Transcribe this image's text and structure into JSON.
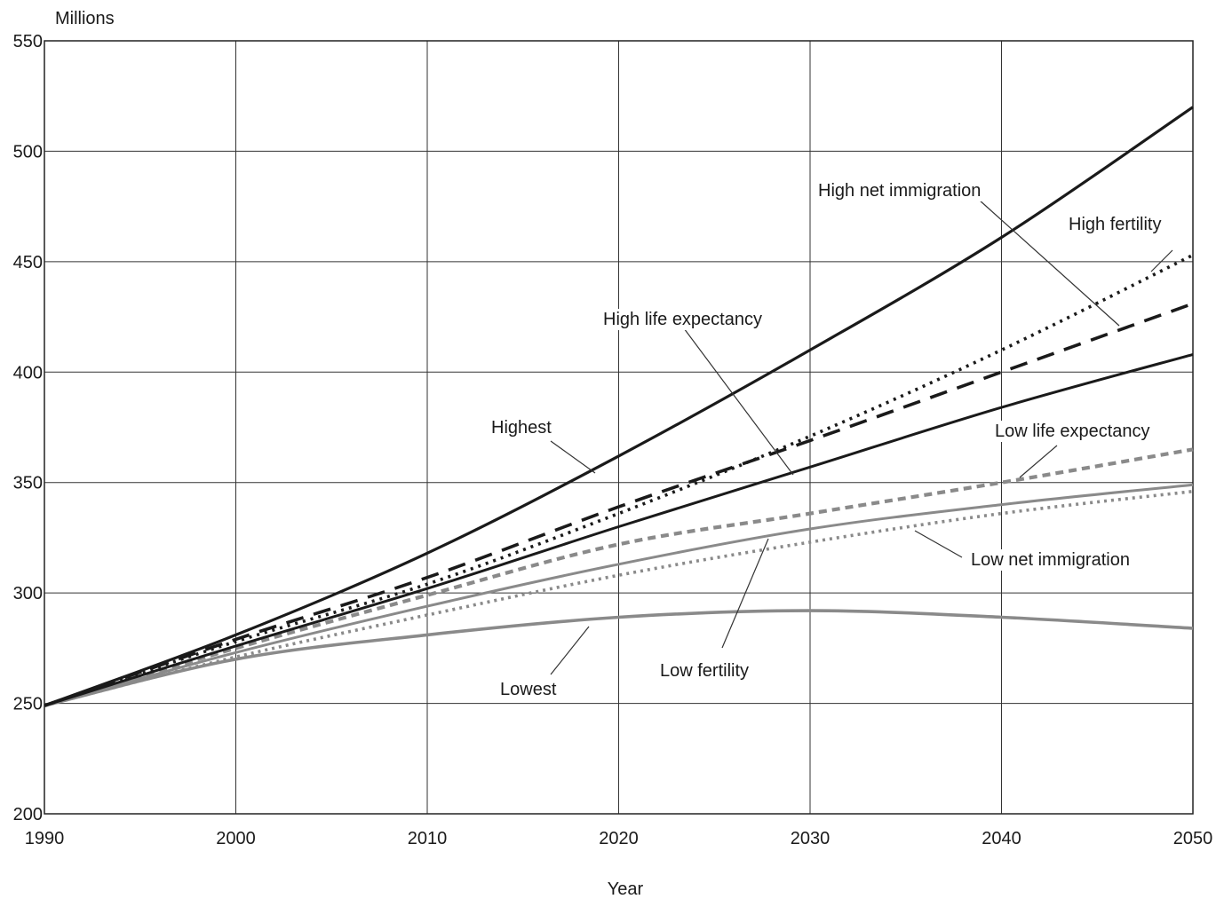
{
  "chart_data": {
    "type": "line",
    "ylabel": "Millions",
    "xlabel": "Year",
    "xlim": [
      1990,
      2050
    ],
    "ylim": [
      200,
      550
    ],
    "x_ticks": [
      1990,
      2000,
      2010,
      2020,
      2030,
      2040,
      2050
    ],
    "y_ticks": [
      200,
      250,
      300,
      350,
      400,
      450,
      500,
      550
    ],
    "grid": true,
    "legend": "none (series labeled directly on plot)",
    "x": [
      1990,
      2000,
      2010,
      2020,
      2030,
      2040,
      2050
    ],
    "series": [
      {
        "name": "Highest",
        "values": [
          249,
          281,
          318,
          362,
          410,
          461,
          520
        ],
        "color": "#1a1a1a",
        "style": "solid-heavy"
      },
      {
        "name": "High fertility",
        "values": [
          249,
          278,
          304,
          336,
          371,
          410,
          453
        ],
        "color": "#1a1a1a",
        "style": "dotted"
      },
      {
        "name": "High net immigration",
        "values": [
          249,
          279,
          307,
          339,
          369,
          400,
          431
        ],
        "color": "#1a1a1a",
        "style": "long-dash"
      },
      {
        "name": "High life expectancy",
        "values": [
          249,
          276,
          302,
          330,
          357,
          384,
          408
        ],
        "color": "#1a1a1a",
        "style": "solid"
      },
      {
        "name": "Low life expectancy",
        "values": [
          249,
          275,
          299,
          322,
          336,
          350,
          365
        ],
        "color": "#8a8a8a",
        "style": "dashed-gray"
      },
      {
        "name": "Low fertility",
        "values": [
          249,
          273,
          294,
          313,
          329,
          340,
          349
        ],
        "color": "#8a8a8a",
        "style": "solid-gray"
      },
      {
        "name": "Low net immigration",
        "values": [
          249,
          271,
          290,
          308,
          323,
          336,
          346
        ],
        "color": "#8a8a8a",
        "style": "dotted-gray"
      },
      {
        "name": "Lowest",
        "values": [
          249,
          270,
          281,
          289,
          292,
          289,
          284
        ],
        "color": "#8a8a8a",
        "style": "solid-gray-heavy"
      }
    ],
    "annotations": [
      {
        "text": "High net immigration",
        "series": "High net immigration"
      },
      {
        "text": "High fertility",
        "series": "High fertility"
      },
      {
        "text": "High life expectancy",
        "series": "High life expectancy"
      },
      {
        "text": "Highest",
        "series": "Highest"
      },
      {
        "text": "Low life expectancy",
        "series": "Low life expectancy"
      },
      {
        "text": "Low net immigration",
        "series": "Low net immigration"
      },
      {
        "text": "Low  fertility",
        "series": "Low fertility"
      },
      {
        "text": "Lowest",
        "series": "Lowest"
      }
    ]
  }
}
